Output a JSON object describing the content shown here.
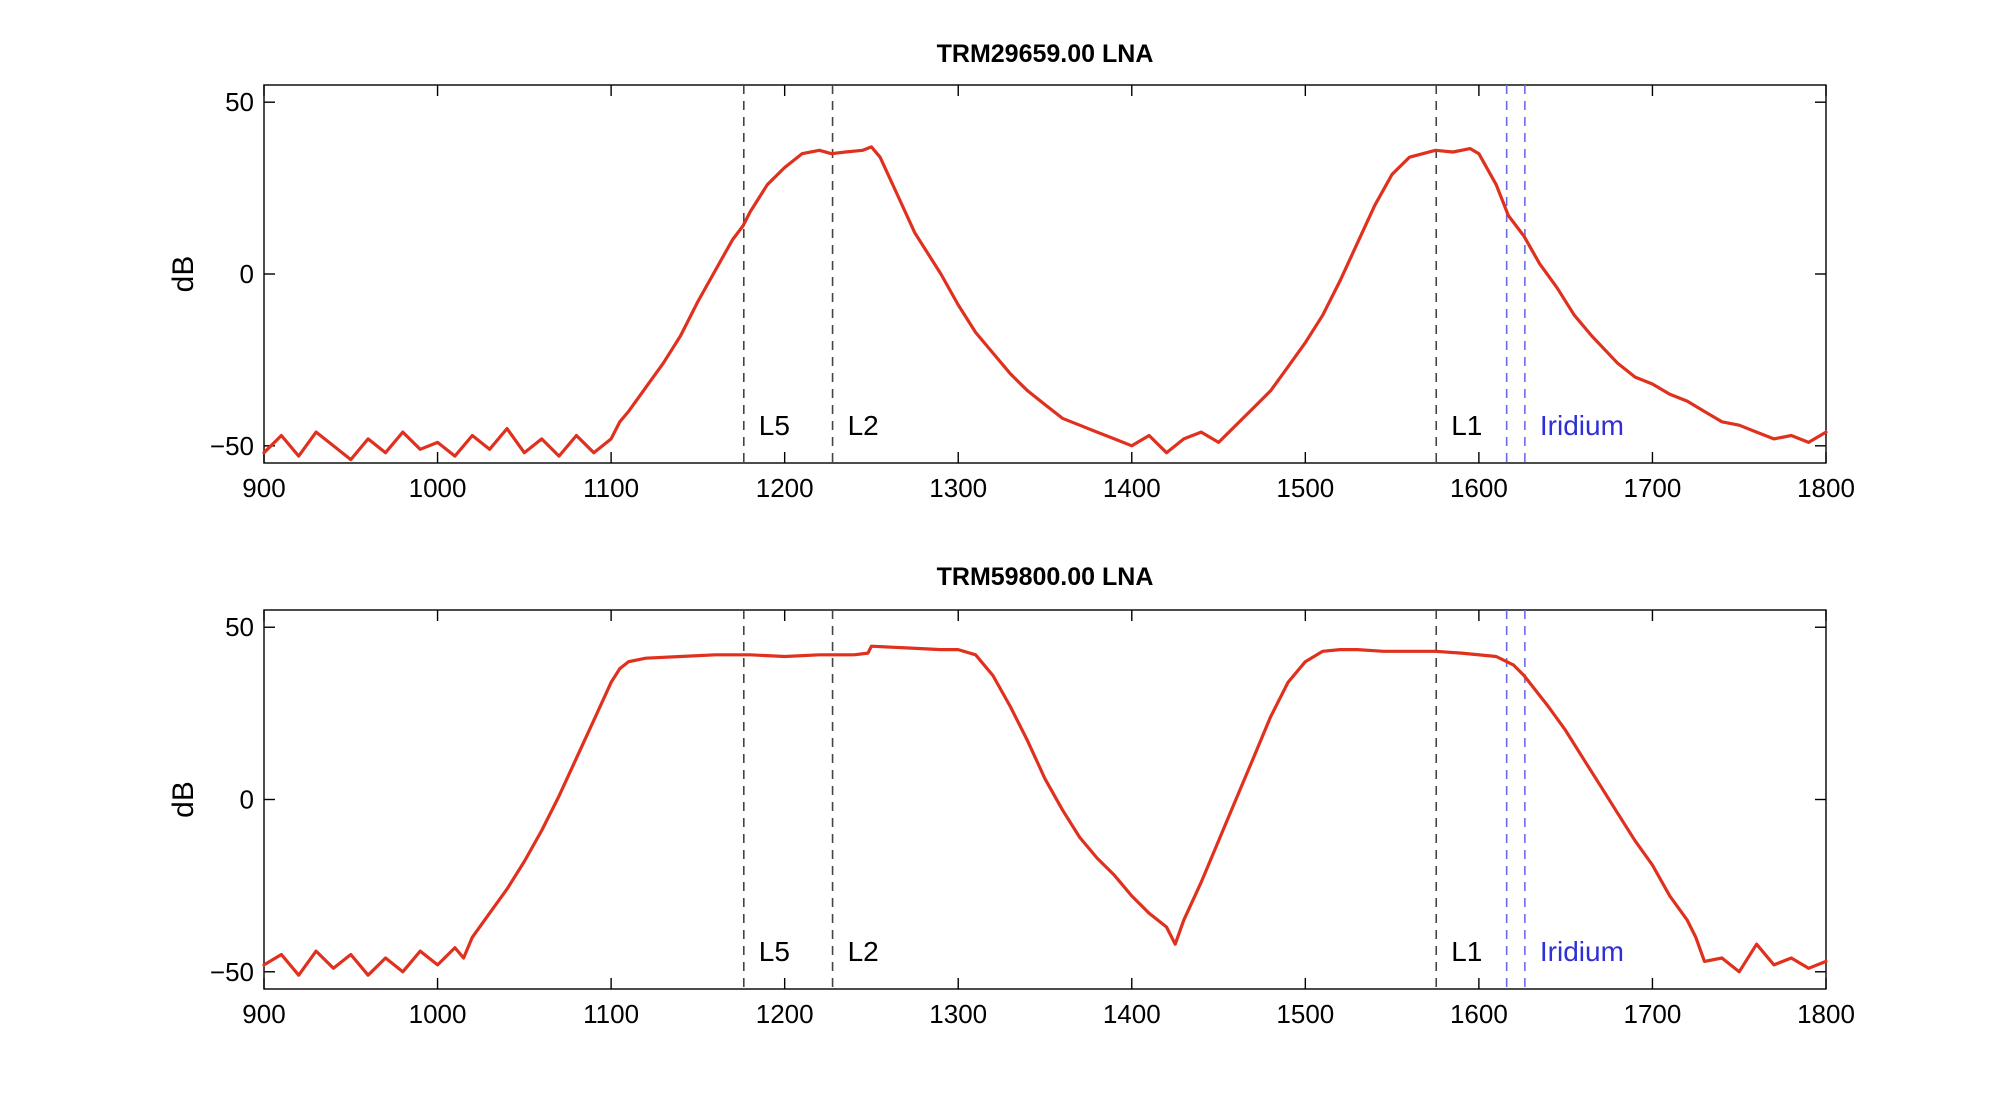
{
  "chart_data": [
    {
      "type": "line",
      "title": "TRM29659.00 LNA",
      "xlabel": "",
      "ylabel": "dB",
      "xlim": [
        900,
        1800
      ],
      "ylim": [
        -55,
        55
      ],
      "xticks": [
        "900",
        "1000",
        "1100",
        "1200",
        "1300",
        "1400",
        "1500",
        "1600",
        "1700",
        "1800"
      ],
      "yticks": [
        "50",
        "0",
        "−50"
      ],
      "grid": false,
      "series": [
        {
          "color": "#e0301e",
          "x": [
            900,
            910,
            920,
            930,
            940,
            950,
            960,
            970,
            980,
            990,
            1000,
            1010,
            1020,
            1030,
            1040,
            1050,
            1060,
            1070,
            1080,
            1090,
            1100,
            1105,
            1110,
            1120,
            1130,
            1140,
            1150,
            1160,
            1170,
            1176,
            1180,
            1190,
            1200,
            1210,
            1220,
            1227,
            1235,
            1245,
            1250,
            1255,
            1265,
            1275,
            1290,
            1300,
            1310,
            1320,
            1330,
            1340,
            1350,
            1360,
            1370,
            1380,
            1390,
            1400,
            1410,
            1420,
            1430,
            1440,
            1450,
            1460,
            1470,
            1480,
            1490,
            1500,
            1510,
            1520,
            1530,
            1540,
            1550,
            1560,
            1575,
            1585,
            1595,
            1600,
            1610,
            1617,
            1626,
            1635,
            1645,
            1655,
            1665,
            1680,
            1690,
            1700,
            1710,
            1720,
            1730,
            1740,
            1750,
            1760,
            1770,
            1780,
            1790,
            1800
          ],
          "y": [
            -52,
            -47,
            -53,
            -46,
            -50,
            -54,
            -48,
            -52,
            -46,
            -51,
            -49,
            -53,
            -47,
            -51,
            -45,
            -52,
            -48,
            -53,
            -47,
            -52,
            -48,
            -43,
            -40,
            -33,
            -26,
            -18,
            -8,
            1,
            10,
            14,
            18,
            26,
            31,
            35,
            36,
            35,
            35.5,
            36,
            37,
            34,
            23,
            12,
            0,
            -9,
            -17,
            -23,
            -29,
            -34,
            -38,
            -42,
            -44,
            -46,
            -48,
            -50,
            -47,
            -52,
            -48,
            -46,
            -49,
            -44,
            -39,
            -34,
            -27,
            -20,
            -12,
            -2,
            9,
            20,
            29,
            34,
            36,
            35.5,
            36.5,
            35,
            26,
            17,
            11,
            3,
            -4,
            -12,
            -18,
            -26,
            -30,
            -32,
            -35,
            -37,
            -40,
            -43,
            -44,
            -46,
            -48,
            -47,
            -49,
            -46
          ]
        }
      ],
      "vlines": [
        {
          "x": 1176.45,
          "label": "L5",
          "color": "#444444"
        },
        {
          "x": 1227.6,
          "label": "L2",
          "color": "#444444"
        },
        {
          "x": 1575.42,
          "label": "L1",
          "color": "#444444"
        },
        {
          "x": 1616,
          "label": "",
          "color": "#6a6ae8"
        },
        {
          "x": 1626.5,
          "label": "Iridium",
          "color": "#6a6ae8"
        }
      ],
      "label_colors": {
        "black": "#000000",
        "iridium": "#2f2fd6"
      }
    },
    {
      "type": "line",
      "title": "TRM59800.00 LNA",
      "xlabel": "",
      "ylabel": "dB",
      "xlim": [
        900,
        1800
      ],
      "ylim": [
        -55,
        55
      ],
      "xticks": [
        "900",
        "1000",
        "1100",
        "1200",
        "1300",
        "1400",
        "1500",
        "1600",
        "1700",
        "1800"
      ],
      "yticks": [
        "50",
        "0",
        "−50"
      ],
      "grid": false,
      "series": [
        {
          "color": "#e0301e",
          "x": [
            900,
            910,
            920,
            930,
            940,
            950,
            960,
            970,
            980,
            990,
            1000,
            1010,
            1015,
            1020,
            1030,
            1040,
            1050,
            1060,
            1070,
            1080,
            1090,
            1100,
            1105,
            1110,
            1120,
            1140,
            1160,
            1180,
            1200,
            1220,
            1240,
            1248,
            1250,
            1270,
            1290,
            1300,
            1310,
            1320,
            1330,
            1340,
            1350,
            1360,
            1370,
            1380,
            1390,
            1400,
            1410,
            1420,
            1425,
            1430,
            1440,
            1450,
            1460,
            1470,
            1480,
            1490,
            1500,
            1510,
            1520,
            1530,
            1545,
            1560,
            1575,
            1590,
            1610,
            1620,
            1626,
            1640,
            1650,
            1660,
            1670,
            1680,
            1690,
            1700,
            1710,
            1720,
            1725,
            1730,
            1740,
            1750,
            1760,
            1770,
            1780,
            1790,
            1800
          ],
          "y": [
            -48,
            -45,
            -51,
            -44,
            -49,
            -45,
            -51,
            -46,
            -50,
            -44,
            -48,
            -43,
            -46,
            -40,
            -33,
            -26,
            -18,
            -9,
            1,
            12,
            23,
            34,
            38,
            40,
            41,
            41.5,
            42,
            42,
            41.5,
            42,
            42,
            42.5,
            44.5,
            44,
            43.5,
            43.5,
            42,
            36,
            27,
            17,
            6,
            -3,
            -11,
            -17,
            -22,
            -28,
            -33,
            -37,
            -42,
            -35,
            -24,
            -12,
            0,
            12,
            24,
            34,
            40,
            43,
            43.5,
            43.5,
            43,
            43,
            43,
            42.5,
            41.5,
            39,
            36,
            27,
            20,
            12,
            4,
            -4,
            -12,
            -19,
            -28,
            -35,
            -40,
            -47,
            -46,
            -50,
            -42,
            -48,
            -46,
            -49,
            -47
          ]
        }
      ],
      "vlines": [
        {
          "x": 1176.45,
          "label": "L5",
          "color": "#444444"
        },
        {
          "x": 1227.6,
          "label": "L2",
          "color": "#444444"
        },
        {
          "x": 1575.42,
          "label": "L1",
          "color": "#444444"
        },
        {
          "x": 1616,
          "label": "",
          "color": "#6a6ae8"
        },
        {
          "x": 1626.5,
          "label": "Iridium",
          "color": "#6a6ae8"
        }
      ],
      "label_colors": {
        "black": "#000000",
        "iridium": "#2f2fd6"
      }
    }
  ]
}
